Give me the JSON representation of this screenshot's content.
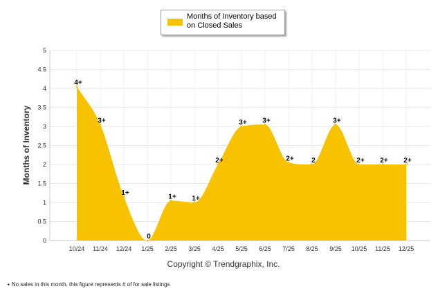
{
  "chart_data": {
    "type": "area",
    "title": "",
    "xlabel": "",
    "ylabel": "Months of Inventory",
    "ylim": [
      0,
      5
    ],
    "yticks": [
      "0",
      "0.5",
      "1",
      "1.5",
      "2",
      "2.5",
      "3",
      "3.5",
      "4",
      "4.5",
      "5"
    ],
    "grid": true,
    "legend_position": "top-center",
    "categories": [
      "10/24",
      "11/24",
      "12/24",
      "1/25",
      "2/25",
      "3/25",
      "4/25",
      "5/25",
      "6/25",
      "7/25",
      "8/25",
      "9/25",
      "10/25",
      "11/25",
      "12/25"
    ],
    "series": [
      {
        "name": "Months of Inventory based on Closed Sales",
        "color": "#f7c200",
        "values": [
          4.05,
          3.05,
          1.15,
          0.0,
          1.05,
          1.0,
          2.0,
          3.0,
          3.05,
          2.05,
          2.0,
          3.05,
          2.0,
          2.0,
          2.0
        ],
        "labels": [
          "4+",
          "3+",
          "1+",
          "0",
          "1+",
          "1+",
          "2+",
          "3+",
          "3+",
          "2+",
          "2",
          "3+",
          "2+",
          "2+",
          "2+"
        ]
      }
    ]
  },
  "legend": {
    "label": "Months of Inventory based on Closed Sales",
    "color": "#f7c200"
  },
  "copyright": "Copyright © Trendgraphix, Inc.",
  "footnote": "+ No sales in this month, this figure represents # of for sale listings",
  "colors": {
    "grid": "#e6e6e6",
    "axis": "#c8c8c8"
  }
}
